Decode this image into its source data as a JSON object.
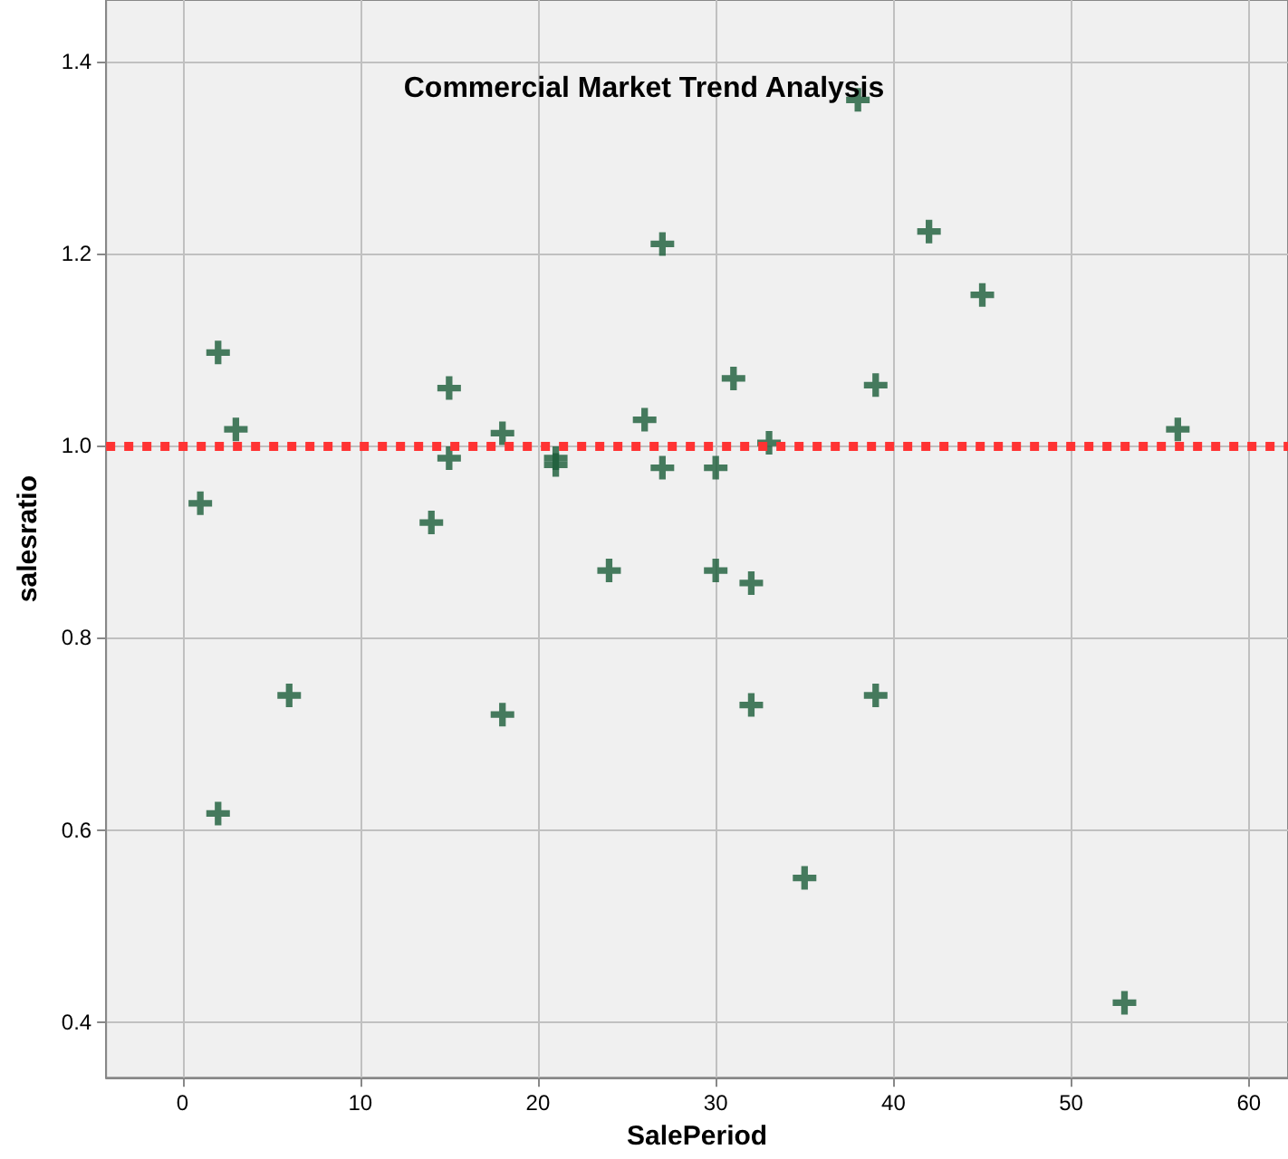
{
  "chart_data": {
    "type": "scatter",
    "title": "Commercial Market Trend Analysis",
    "xlabel": "SalePeriod",
    "ylabel": "salesratio",
    "x": [
      1,
      2,
      2,
      3,
      6,
      14,
      15,
      15,
      18,
      18,
      21,
      21,
      24,
      26,
      27,
      27,
      30,
      30,
      31,
      32,
      32,
      33,
      35,
      38,
      39,
      39,
      42,
      45,
      53,
      56
    ],
    "series": [
      {
        "color": "#1a5c38",
        "values": [
          0.94,
          1.097,
          0.617,
          1.017,
          0.74,
          0.92,
          1.06,
          0.987,
          1.013,
          0.72,
          0.987,
          0.98,
          0.87,
          1.027,
          1.21,
          0.977,
          0.977,
          0.87,
          1.07,
          0.857,
          0.73,
          1.003,
          0.55,
          1.36,
          1.063,
          0.74,
          1.223,
          1.157,
          0.42,
          1.017
        ]
      }
    ],
    "xlim": [
      -4.3,
      62.2
    ],
    "ylim": [
      0.342,
      1.464
    ],
    "xticks": [
      0,
      10,
      20,
      30,
      40,
      50,
      60
    ],
    "yticks": [
      0.4,
      0.6,
      0.8,
      {
        "value": 1,
        "label": "1.0"
      },
      1.2,
      1.4
    ],
    "ref_lines": [
      {
        "axis": "y",
        "value": 1,
        "color": "#ff3333",
        "line_style": "dotted"
      }
    ],
    "grid": true,
    "marker": "cross"
  }
}
